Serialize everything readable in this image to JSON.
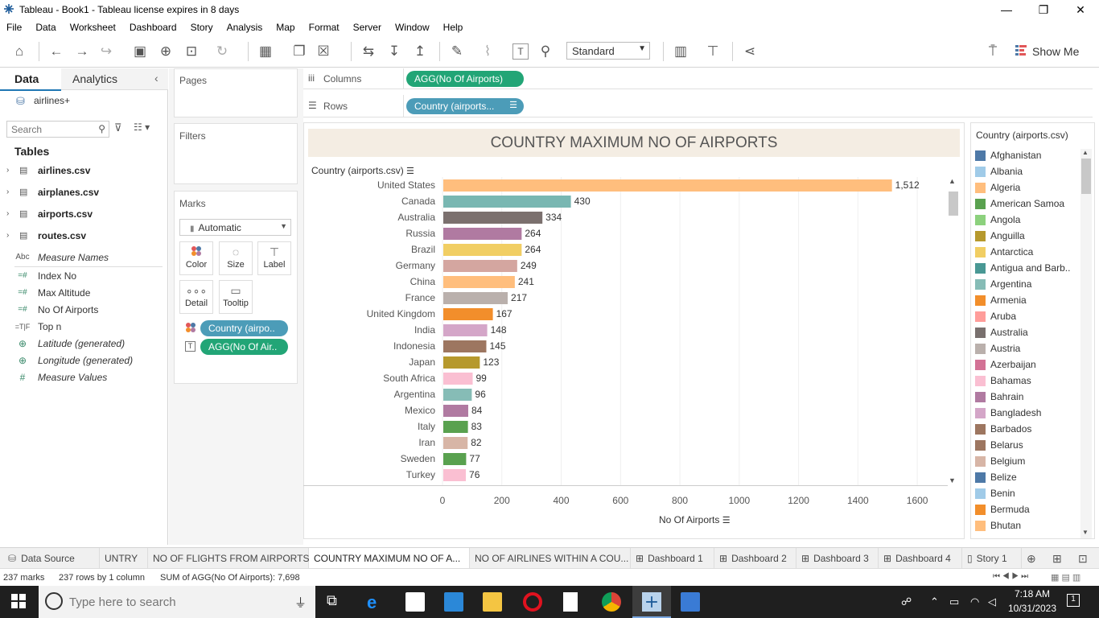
{
  "window": {
    "title": "Tableau - Book1 - Tableau license expires in 8 days",
    "min": "—",
    "restore": "❐",
    "close": "✕"
  },
  "menu": [
    "File",
    "Data",
    "Worksheet",
    "Dashboard",
    "Story",
    "Analysis",
    "Map",
    "Format",
    "Server",
    "Window",
    "Help"
  ],
  "toolbar": {
    "fit_select": "Standard",
    "show_me": "Show Me"
  },
  "data_pane": {
    "tabs": {
      "data": "Data",
      "analytics": "Analytics"
    },
    "datasource": "airlines+",
    "search_placeholder": "Search",
    "tables_heading": "Tables",
    "tables": [
      "airlines.csv",
      "airplanes.csv",
      "airports.csv",
      "routes.csv"
    ],
    "fields": [
      {
        "icon": "Abc",
        "name": "Measure Names",
        "italic": true
      },
      {
        "icon": "=#",
        "name": "Index No",
        "italic": false
      },
      {
        "icon": "=#",
        "name": "Max Altitude",
        "italic": false
      },
      {
        "icon": "=#",
        "name": "No Of Airports",
        "italic": false
      },
      {
        "icon": "=T|F",
        "name": "Top n",
        "italic": false
      },
      {
        "icon": "⊕",
        "name": "Latitude (generated)",
        "italic": true
      },
      {
        "icon": "⊕",
        "name": "Longitude (generated)",
        "italic": true
      },
      {
        "icon": "#",
        "name": "Measure Values",
        "italic": true
      }
    ]
  },
  "cards": {
    "pages": "Pages",
    "filters": "Filters",
    "marks": "Marks",
    "mark_type": "Automatic",
    "buttons": {
      "color": "Color",
      "size": "Size",
      "label": "Label",
      "detail": "Detail",
      "tooltip": "Tooltip"
    },
    "mark_pills": {
      "color": "Country (airpo..",
      "label": "AGG(No Of Air.."
    }
  },
  "shelves": {
    "columns_label": "Columns",
    "columns_pill": "AGG(No Of Airports)",
    "rows_label": "Rows",
    "rows_pill": "Country (airports..."
  },
  "chart_data": {
    "type": "bar",
    "title": "COUNTRY MAXIMUM NO OF AIRPORTS",
    "ylabel": "Country (airports.csv)",
    "xlabel": "No Of Airports",
    "xlim": [
      0,
      1700
    ],
    "xticks": [
      "0",
      "200",
      "400",
      "600",
      "800",
      "1000",
      "1200",
      "1400",
      "1600"
    ],
    "categories": [
      "United States",
      "Canada",
      "Australia",
      "Russia",
      "Brazil",
      "Germany",
      "China",
      "France",
      "United Kingdom",
      "India",
      "Indonesia",
      "Japan",
      "South Africa",
      "Argentina",
      "Mexico",
      "Italy",
      "Iran",
      "Sweden",
      "Turkey"
    ],
    "values": [
      1512,
      430,
      334,
      264,
      264,
      249,
      241,
      217,
      167,
      148,
      145,
      123,
      99,
      96,
      84,
      83,
      82,
      77,
      76
    ],
    "labels": [
      "1,512",
      "430",
      "334",
      "264",
      "264",
      "249",
      "241",
      "217",
      "167",
      "148",
      "145",
      "123",
      "99",
      "96",
      "84",
      "83",
      "82",
      "77",
      "76"
    ],
    "colors": [
      "#ffbe7d",
      "#79b7b2",
      "#7b706e",
      "#b07aa1",
      "#f1ce63",
      "#d4a6a0",
      "#ffbe7d",
      "#bab0ac",
      "#f28e2b",
      "#d4a6c8",
      "#9d7660",
      "#b6992d",
      "#fabfd2",
      "#86bcb6",
      "#b07aa1",
      "#59a14f",
      "#d7b5a6",
      "#59a14f",
      "#fabfd2"
    ]
  },
  "legend": {
    "title": "Country (airports.csv)",
    "items": [
      {
        "name": "Afghanistan",
        "color": "#4e79a7"
      },
      {
        "name": "Albania",
        "color": "#a0cbe8"
      },
      {
        "name": "Algeria",
        "color": "#ffbe7d"
      },
      {
        "name": "American Samoa",
        "color": "#59a14f"
      },
      {
        "name": "Angola",
        "color": "#8cd17d"
      },
      {
        "name": "Anguilla",
        "color": "#b6992d"
      },
      {
        "name": "Antarctica",
        "color": "#f1ce63"
      },
      {
        "name": "Antigua and Barb..",
        "color": "#499894"
      },
      {
        "name": "Argentina",
        "color": "#86bcb6"
      },
      {
        "name": "Armenia",
        "color": "#f28e2b"
      },
      {
        "name": "Aruba",
        "color": "#ff9d9a"
      },
      {
        "name": "Australia",
        "color": "#79706e"
      },
      {
        "name": "Austria",
        "color": "#bab0ac"
      },
      {
        "name": "Azerbaijan",
        "color": "#d37295"
      },
      {
        "name": "Bahamas",
        "color": "#fabfd2"
      },
      {
        "name": "Bahrain",
        "color": "#b07aa1"
      },
      {
        "name": "Bangladesh",
        "color": "#d4a6c8"
      },
      {
        "name": "Barbados",
        "color": "#9d7660"
      },
      {
        "name": "Belarus",
        "color": "#9d7660"
      },
      {
        "name": "Belgium",
        "color": "#d7b5a6"
      },
      {
        "name": "Belize",
        "color": "#4e79a7"
      },
      {
        "name": "Benin",
        "color": "#a0cbe8"
      },
      {
        "name": "Bermuda",
        "color": "#f28e2b"
      },
      {
        "name": "Bhutan",
        "color": "#ffbe7d"
      }
    ]
  },
  "sheet_tabs": [
    "Data Source",
    "UNTRY",
    "NO OF FLIGHTS FROM AIRPORTS",
    "COUNTRY MAXIMUM NO OF A...",
    "NO OF AIRLINES WITHIN A COU...",
    "Dashboard 1",
    "Dashboard 2",
    "Dashboard 3",
    "Dashboard 4",
    "Story 1"
  ],
  "status": {
    "marks": "237 marks",
    "rows": "237 rows by 1 column",
    "sum": "SUM of AGG(No Of Airports): 7,698"
  },
  "taskbar": {
    "search_placeholder": "Type here to search",
    "time": "7:18 AM",
    "date": "10/31/2023",
    "notif_count": "1"
  }
}
